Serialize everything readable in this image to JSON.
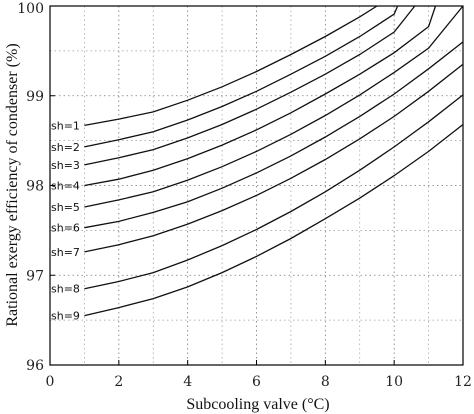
{
  "chart_data": {
    "type": "line",
    "title": "",
    "xlabel": "Subcooling valve (°C)",
    "ylabel": "Rational exergy efficiency of condenser (%)",
    "xlim": [
      0,
      12
    ],
    "ylim": [
      96,
      100
    ],
    "xticks": [
      "0",
      "2",
      "4",
      "6",
      "8",
      "10",
      "12"
    ],
    "yticks": [
      "96",
      "97",
      "98",
      "99",
      "100"
    ],
    "grid": "dotted",
    "series": [
      {
        "name": "sh=1",
        "x": [
          1,
          2,
          3,
          4,
          5,
          6,
          7,
          8,
          9,
          9.5
        ],
        "y": [
          98.67,
          98.74,
          98.82,
          98.95,
          99.1,
          99.27,
          99.46,
          99.66,
          99.88,
          100.0
        ]
      },
      {
        "name": "sh=2",
        "x": [
          1,
          2,
          3,
          4,
          5,
          6,
          7,
          8,
          9,
          10,
          10.1
        ],
        "y": [
          98.43,
          98.51,
          98.6,
          98.73,
          98.88,
          99.05,
          99.24,
          99.44,
          99.66,
          99.91,
          100.0
        ]
      },
      {
        "name": "sh=3",
        "x": [
          1,
          2,
          3,
          4,
          5,
          6,
          7,
          8,
          9,
          10,
          10.6
        ],
        "y": [
          98.23,
          98.31,
          98.4,
          98.53,
          98.68,
          98.85,
          99.04,
          99.24,
          99.46,
          99.71,
          100.0
        ]
      },
      {
        "name": "sh=4",
        "x": [
          1,
          2,
          3,
          4,
          5,
          6,
          7,
          8,
          9,
          10,
          11,
          11.2
        ],
        "y": [
          98.0,
          98.07,
          98.17,
          98.3,
          98.45,
          98.62,
          98.81,
          99.02,
          99.24,
          99.48,
          99.77,
          100.0
        ]
      },
      {
        "name": "sh=5",
        "x": [
          1,
          2,
          3,
          4,
          5,
          6,
          7,
          8,
          9,
          10,
          11,
          12
        ],
        "y": [
          97.76,
          97.84,
          97.93,
          98.06,
          98.21,
          98.38,
          98.57,
          98.78,
          99.01,
          99.26,
          99.53,
          100.0
        ]
      },
      {
        "name": "sh=6",
        "x": [
          1,
          2,
          3,
          4,
          5,
          6,
          7,
          8,
          9,
          10,
          11,
          12
        ],
        "y": [
          97.53,
          97.6,
          97.7,
          97.82,
          97.97,
          98.14,
          98.33,
          98.54,
          98.77,
          99.02,
          99.3,
          99.6
        ]
      },
      {
        "name": "sh=7",
        "x": [
          1,
          2,
          3,
          4,
          5,
          6,
          7,
          8,
          9,
          10,
          11,
          12
        ],
        "y": [
          97.26,
          97.34,
          97.44,
          97.57,
          97.72,
          97.89,
          98.08,
          98.29,
          98.52,
          98.77,
          99.05,
          99.35
        ]
      },
      {
        "name": "sh=8",
        "x": [
          1,
          2,
          3,
          4,
          5,
          6,
          7,
          8,
          9,
          10,
          11,
          12
        ],
        "y": [
          96.85,
          96.93,
          97.03,
          97.17,
          97.33,
          97.51,
          97.71,
          97.93,
          98.17,
          98.43,
          98.71,
          99.01
        ]
      },
      {
        "name": "sh=9",
        "x": [
          1,
          2,
          3,
          4,
          5,
          6,
          7,
          8,
          9,
          10,
          11,
          12
        ],
        "y": [
          96.55,
          96.64,
          96.74,
          96.87,
          97.03,
          97.21,
          97.41,
          97.63,
          97.86,
          98.11,
          98.38,
          98.68
        ]
      }
    ]
  }
}
